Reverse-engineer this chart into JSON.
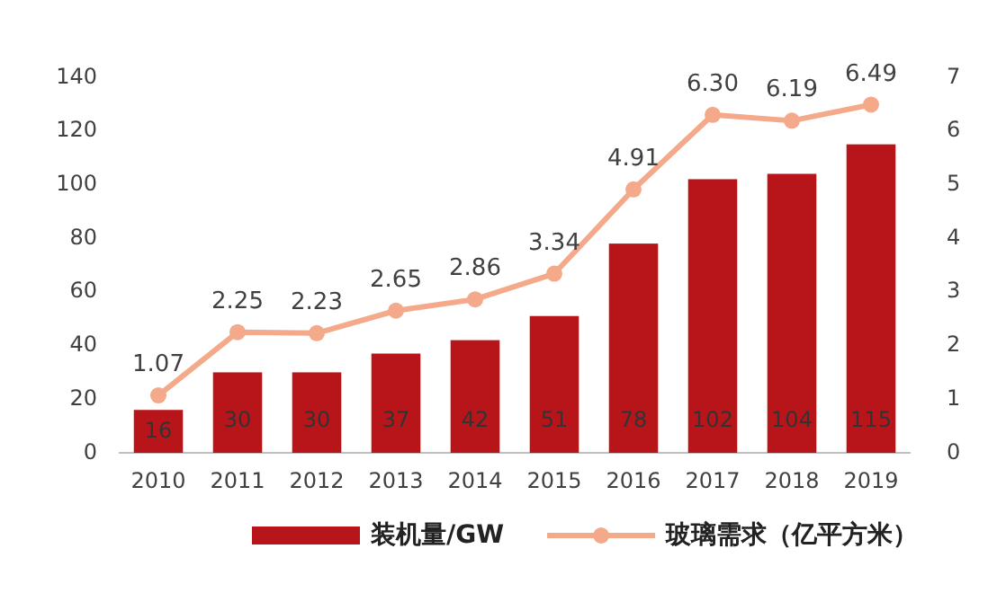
{
  "chart_data": {
    "type": "bar",
    "categories": [
      "2010",
      "2011",
      "2012",
      "2013",
      "2014",
      "2015",
      "2016",
      "2017",
      "2018",
      "2019"
    ],
    "series": [
      {
        "name": "装机量/GW",
        "color": "#b8151b",
        "values": [
          16,
          30,
          30,
          37,
          42,
          51,
          78,
          102,
          104,
          115
        ]
      },
      {
        "name": "玻璃需求（亿平方米）",
        "color": "#f4a98a",
        "type": "line",
        "axis": "y2",
        "values": [
          1.07,
          2.25,
          2.23,
          2.65,
          2.86,
          3.34,
          4.91,
          6.3,
          6.19,
          6.49
        ],
        "value_labels": [
          "1.07",
          "2.25",
          "2.23",
          "2.65",
          "2.86",
          "3.34",
          "4.91",
          "6.30",
          "6.19",
          "6.49"
        ]
      }
    ],
    "ylim": [
      0,
      140
    ],
    "yticks": [
      0,
      20,
      40,
      60,
      80,
      100,
      120,
      140
    ],
    "y2lim": [
      0,
      7
    ],
    "y2ticks": [
      0,
      1,
      2,
      3,
      4,
      5,
      6,
      7
    ],
    "data_labels": true,
    "legend": "bottom",
    "marker": "circle",
    "grid": false
  }
}
